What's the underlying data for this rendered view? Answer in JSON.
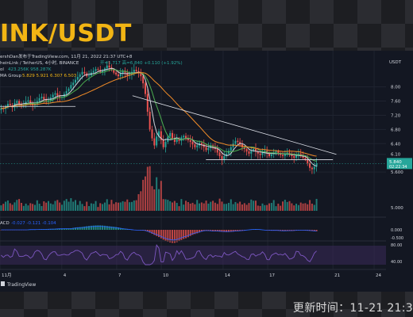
{
  "title": "INK/USDT",
  "update_label": "更新时间：11-21 21:3",
  "header": {
    "line1": "ershDan发布于TradingView.com, 11月 21, 2022 21:37 UTC+8",
    "line2_pre": "heinLink / TetherUS, 4小时, BINANCE",
    "line2_ohlc": "开=5.717 高=6.840 +0.110 (+1.92%)",
    "line3_label": "ol",
    "line3_values": "423.256K 958.287K",
    "line4_label": "MA Group",
    "line4_values": "5.829 5.921 6.307 6.503"
  },
  "macd_label": "ACD",
  "macd_values": "-0.027 -0.121 -0.104",
  "tv_brand": "TradingView",
  "currency_label": "USDT",
  "colors": {
    "bg": "#131722",
    "up": "#26a69a",
    "down": "#ef5350",
    "accent": "#f2b514",
    "ma_orange": "#f28c28",
    "ma_green": "#4caf50",
    "ma_white": "#d1d4dc",
    "macd": "#2962ff",
    "signal": "#ff6d00",
    "rsi": "#7e57c2",
    "rsi_band": "#3b2a5a"
  },
  "chart_data": {
    "type": "candlestick",
    "pair": "LINK/USDT",
    "timeframe": "4h",
    "ylim": [
      5.0,
      8.75
    ],
    "y_ticks": [
      "8.00",
      "7.60",
      "7.20",
      "6.80",
      "6.40",
      "6.10",
      "5.600",
      "5.000"
    ],
    "current_price": "5.840",
    "countdown": "02:22:34",
    "x_ticks": [
      "11月",
      "4",
      "7",
      "10",
      "14",
      "17",
      "21",
      "24"
    ],
    "x_positions": [
      0,
      18,
      34,
      47,
      65,
      78,
      97,
      109
    ],
    "trendline": [
      [
        38.6,
        7.75
      ],
      [
        98,
        6.1
      ]
    ],
    "support": [
      [
        60,
        5.95
      ],
      [
        97,
        5.95
      ]
    ],
    "early_level": [
      [
        0,
        7.45
      ],
      [
        22,
        7.45
      ]
    ],
    "closes": [
      7.4,
      7.38,
      7.45,
      7.52,
      7.48,
      7.42,
      7.55,
      7.6,
      7.52,
      7.48,
      7.5,
      7.58,
      7.62,
      7.55,
      7.48,
      7.52,
      7.6,
      7.68,
      7.72,
      7.65,
      7.58,
      7.62,
      7.7,
      7.78,
      7.82,
      7.75,
      7.7,
      7.72,
      7.8,
      7.88,
      7.95,
      8.05,
      8.12,
      8.2,
      8.28,
      8.35,
      8.42,
      8.38,
      8.3,
      8.32,
      8.4,
      8.45,
      8.5,
      8.48,
      8.42,
      8.45,
      8.52,
      8.6,
      8.55,
      8.48,
      8.4,
      8.35,
      8.3,
      8.38,
      8.45,
      8.4,
      8.32,
      8.35,
      8.42,
      8.48,
      8.44,
      8.38,
      8.3,
      8.1,
      7.8,
      7.3,
      6.8,
      6.55,
      6.35,
      6.6,
      6.75,
      6.5,
      6.3,
      6.45,
      6.6,
      6.7,
      6.55,
      6.45,
      6.52,
      6.48,
      6.58,
      6.62,
      6.55,
      6.5,
      6.45,
      6.38,
      6.3,
      6.35,
      6.42,
      6.38,
      6.3,
      6.22,
      6.28,
      6.35,
      6.3,
      6.25,
      6.15,
      6.05,
      5.95,
      6.05,
      6.12,
      6.2,
      6.3,
      6.4,
      6.48,
      6.45,
      6.38,
      6.3,
      6.25,
      6.18,
      6.12,
      6.2,
      6.25,
      6.18,
      6.12,
      6.08,
      6.15,
      6.2,
      6.12,
      6.05,
      6.1,
      6.15,
      6.18,
      6.12,
      6.08,
      6.05,
      6.12,
      6.15,
      6.1,
      6.05,
      6.0,
      6.08,
      6.12,
      6.05,
      6.0,
      5.95,
      5.85,
      5.72,
      5.68,
      5.75,
      5.84
    ]
  }
}
